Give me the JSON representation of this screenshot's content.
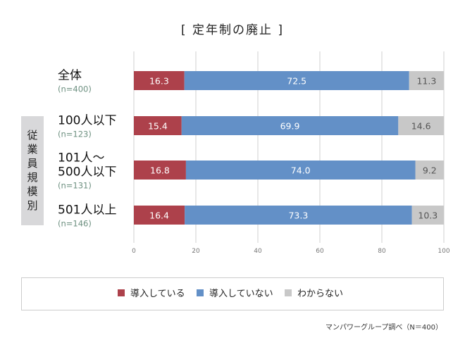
{
  "chart_data": {
    "type": "bar",
    "orientation": "horizontal",
    "stacked": true,
    "title": "[ 定年制の廃止 ]",
    "group_label": "従業員規模別",
    "categories": [
      {
        "label": [
          "全体"
        ],
        "n": "(n=400)"
      },
      {
        "label": [
          "100人以下"
        ],
        "n": "(n=123)"
      },
      {
        "label": [
          "101人～",
          "500人以下"
        ],
        "n": "(n=131)"
      },
      {
        "label": [
          "501人以上"
        ],
        "n": "(n=146)"
      }
    ],
    "series": [
      {
        "name": "導入している",
        "color": "#ad414b",
        "values": [
          16.3,
          15.4,
          16.8,
          16.4
        ]
      },
      {
        "name": "導入していない",
        "color": "#6390c7",
        "values": [
          72.5,
          69.9,
          74.0,
          73.3
        ]
      },
      {
        "name": "わからない",
        "color": "#c8c8c8",
        "values": [
          11.3,
          14.6,
          9.2,
          10.3
        ]
      }
    ],
    "xlim": [
      0,
      100
    ],
    "xticks": [
      "0",
      "20",
      "40",
      "60",
      "80",
      "100"
    ],
    "grid": true,
    "legend_position": "bottom"
  },
  "source_note": "マンパワーグループ調べ（N＝400）"
}
